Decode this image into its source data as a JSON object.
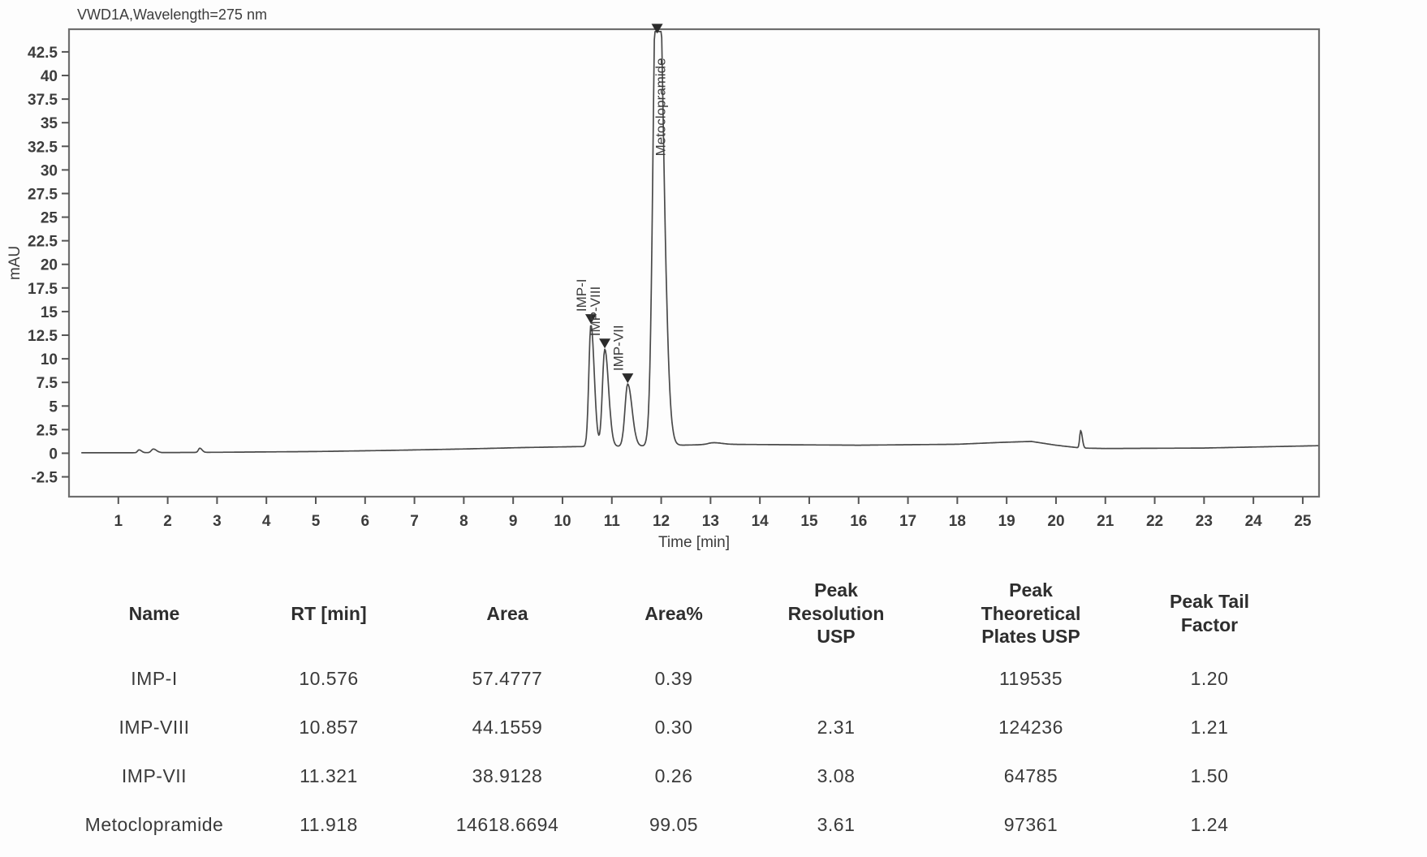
{
  "chart_data": {
    "type": "line",
    "title": "VWD1A,Wavelength=275 nm",
    "xlabel": "Time [min]",
    "ylabel": "mAU",
    "xlim": [
      0,
      25.33
    ],
    "ylim": [
      -4.6,
      44.9
    ],
    "x_ticks": [
      1,
      2,
      3,
      4,
      5,
      6,
      7,
      8,
      9,
      10,
      11,
      12,
      13,
      14,
      15,
      16,
      17,
      18,
      19,
      20,
      21,
      22,
      23,
      24,
      25
    ],
    "y_ticks": [
      "-2.5",
      "0",
      "2.5",
      "5",
      "7.5",
      "10",
      "12.5",
      "15",
      "17.5",
      "20",
      "22.5",
      "25",
      "27.5",
      "30",
      "32.5",
      "35",
      "37.5",
      "40",
      "42.5"
    ],
    "grid": false,
    "legend": "none",
    "clip_level": 44.65,
    "baseline_nodes": [
      [
        0,
        0.05
      ],
      [
        1.2,
        0.05
      ],
      [
        3,
        0.1
      ],
      [
        5,
        0.18
      ],
      [
        6.5,
        0.3
      ],
      [
        8,
        0.45
      ],
      [
        9.2,
        0.6
      ],
      [
        10.3,
        0.7
      ],
      [
        11.6,
        0.75
      ],
      [
        12.4,
        0.85
      ],
      [
        13.2,
        0.95
      ],
      [
        14.5,
        0.9
      ],
      [
        16,
        0.85
      ],
      [
        18,
        0.95
      ],
      [
        18.9,
        1.15
      ],
      [
        19.5,
        1.25
      ],
      [
        20.0,
        0.85
      ],
      [
        20.5,
        0.55
      ],
      [
        21,
        0.5
      ],
      [
        23,
        0.55
      ],
      [
        25.33,
        0.8
      ]
    ],
    "peaks": [
      {
        "name": "",
        "rt": 1.42,
        "height": 0.3,
        "sigma": 0.03,
        "labeled": false
      },
      {
        "name": "",
        "rt": 1.71,
        "height": 0.38,
        "sigma": 0.04,
        "labeled": false
      },
      {
        "name": "",
        "rt": 2.65,
        "height": 0.45,
        "sigma": 0.028,
        "labeled": false
      },
      {
        "name": "IMP-I",
        "rt": 10.576,
        "height": 12.9,
        "sigma": 0.042,
        "labeled": true
      },
      {
        "name": "IMP-VIII",
        "rt": 10.857,
        "height": 10.3,
        "sigma": 0.048,
        "labeled": true
      },
      {
        "name": "IMP-VII",
        "rt": 11.321,
        "height": 6.6,
        "sigma": 0.055,
        "labeled": true
      },
      {
        "name": "Metoclopramide",
        "rt": 11.918,
        "height": 58,
        "sigma": 0.075,
        "labeled": true,
        "clipped": true
      },
      {
        "name": "",
        "rt": 13.05,
        "height": 0.18,
        "sigma": 0.1,
        "labeled": false
      },
      {
        "name": "",
        "rt": 20.5,
        "height": 1.85,
        "sigma": 0.02,
        "labeled": false
      }
    ]
  },
  "table": {
    "headers": [
      "Name",
      "RT [min]",
      "Area",
      "Area%",
      "Peak\nResolution\nUSP",
      "Peak\nTheoretical\nPlates USP",
      "Peak Tail\nFactor"
    ],
    "rows": [
      {
        "name": "IMP-I",
        "rt": "10.576",
        "area": "57.4777",
        "area_pct": "0.39",
        "resolution": "",
        "plates": "119535",
        "tail": "1.20"
      },
      {
        "name": "IMP-VIII",
        "rt": "10.857",
        "area": "44.1559",
        "area_pct": "0.30",
        "resolution": "2.31",
        "plates": "124236",
        "tail": "1.21"
      },
      {
        "name": "IMP-VII",
        "rt": "11.321",
        "area": "38.9128",
        "area_pct": "0.26",
        "resolution": "3.08",
        "plates": "64785",
        "tail": "1.50"
      },
      {
        "name": "Metoclopramide",
        "rt": "11.918",
        "area": "14618.6694",
        "area_pct": "99.05",
        "resolution": "3.61",
        "plates": "97361",
        "tail": "1.24"
      }
    ]
  },
  "colors": {
    "trace": "#4a4a4a",
    "frame": "#6e6e6e",
    "tick": "#555555",
    "text": "#3c3c3c",
    "marker": "#2b2b2b"
  }
}
